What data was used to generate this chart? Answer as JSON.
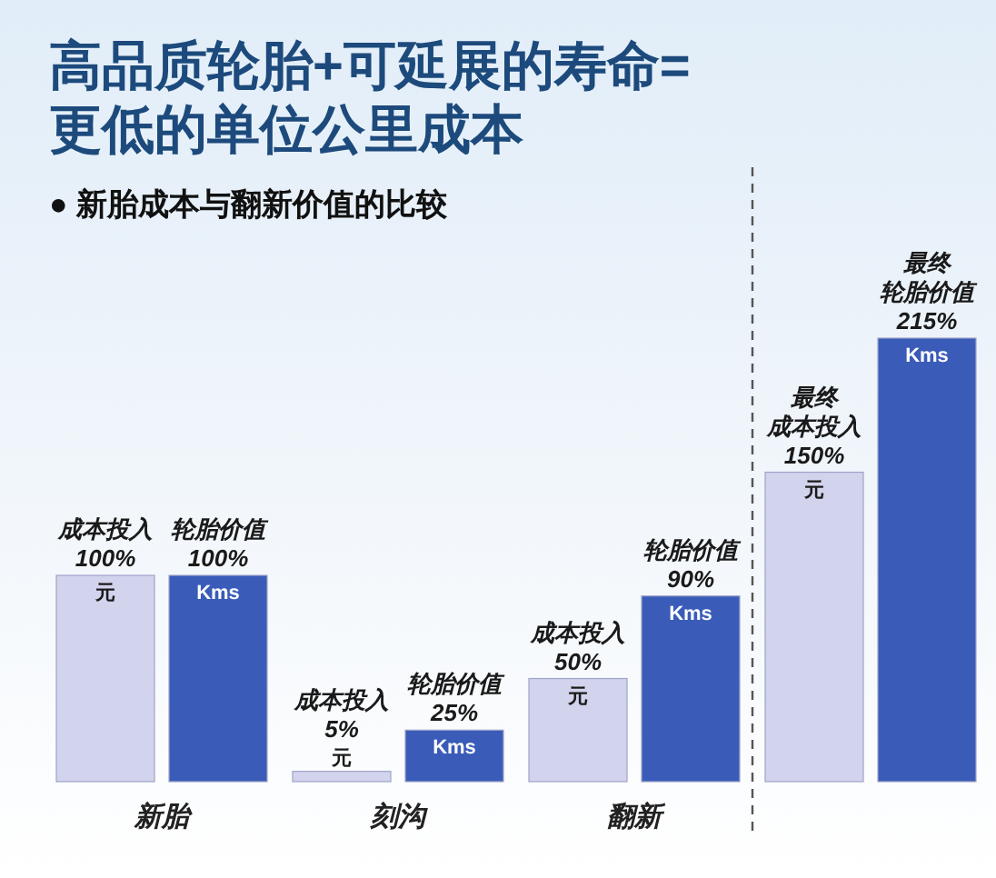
{
  "chart_data": {
    "type": "bar",
    "title": "高品质轮胎+可延展的寿命=\n更低的单位公里成本",
    "subtitle": "● 新胎成本与翻新价值的比较",
    "categories": [
      "新胎",
      "刻沟",
      "翻新",
      null
    ],
    "series": [
      {
        "name": "元",
        "color": "#d2d3ec",
        "values": [
          100,
          5,
          50,
          150
        ],
        "value_labels": [
          "成本投入\n100%",
          "成本投入\n5%",
          "成本投入\n50%",
          "最终成本投入\n150%"
        ]
      },
      {
        "name": "Kms",
        "color": "#3a5cb8",
        "values": [
          100,
          25,
          90,
          215
        ],
        "value_labels": [
          "轮胎价值\n100%",
          "轮胎价值\n25%",
          "轮胎价值\n90%",
          "最终轮胎价值\n215%"
        ]
      }
    ]
  }
}
